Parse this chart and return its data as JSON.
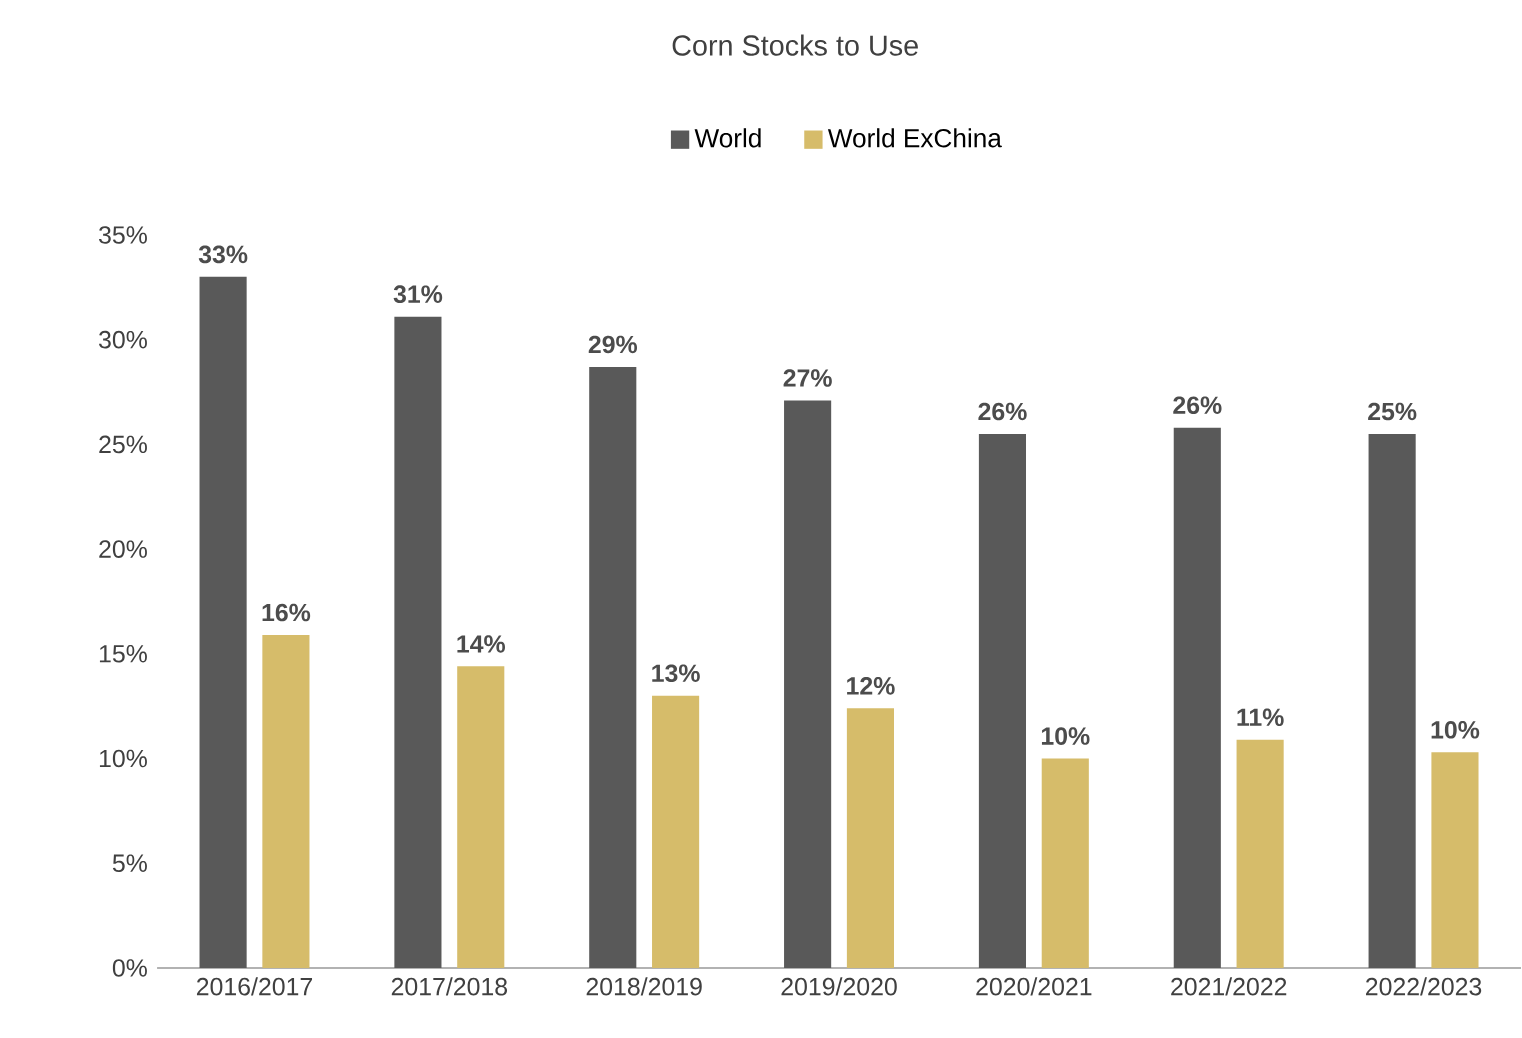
{
  "chart_data": {
    "type": "bar",
    "title": "Corn Stocks to Use",
    "categories": [
      "2016/2017",
      "2017/2018",
      "2018/2019",
      "2019/2020",
      "2020/2021",
      "2021/2022",
      "2022/2023"
    ],
    "series": [
      {
        "name": "World",
        "color": "#595959",
        "values": [
          33.0,
          31.1,
          28.7,
          27.1,
          25.5,
          25.8,
          25.5
        ],
        "value_labels": [
          "33%",
          "31%",
          "29%",
          "27%",
          "26%",
          "26%",
          "25%"
        ]
      },
      {
        "name": "World ExChina",
        "color": "#d6bc6a",
        "values": [
          15.9,
          14.4,
          13.0,
          12.4,
          10.0,
          10.9,
          10.3
        ],
        "value_labels": [
          "16%",
          "14%",
          "13%",
          "12%",
          "10%",
          "11%",
          "10%"
        ]
      }
    ],
    "ylim": [
      0,
      35
    ],
    "yticks": [
      {
        "value": 0,
        "label": "0%"
      },
      {
        "value": 5,
        "label": "5%"
      },
      {
        "value": 10,
        "label": "10%"
      },
      {
        "value": 15,
        "label": "15%"
      },
      {
        "value": 20,
        "label": "20%"
      },
      {
        "value": 25,
        "label": "25%"
      },
      {
        "value": 30,
        "label": "30%"
      },
      {
        "value": 35,
        "label": "35%"
      }
    ],
    "legend": "top"
  }
}
